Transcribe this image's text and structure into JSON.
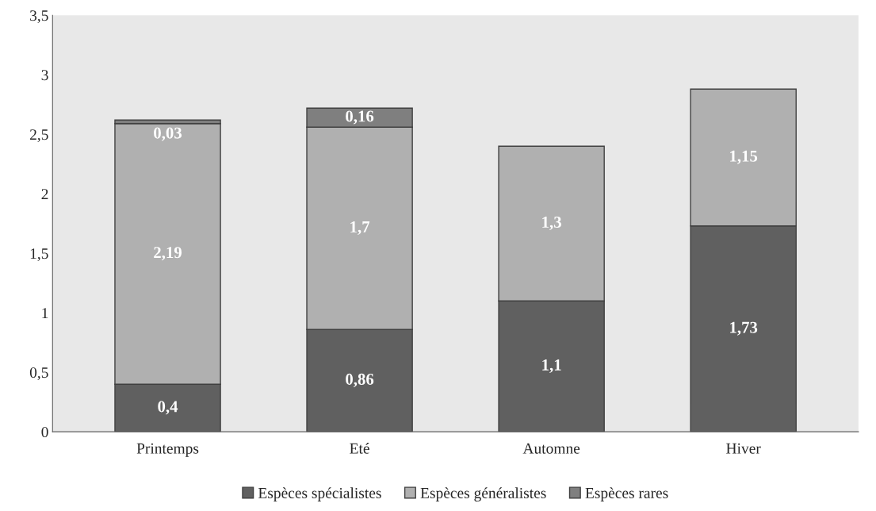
{
  "chart_data": {
    "type": "bar",
    "stacked": true,
    "categories": [
      "Printemps",
      "Eté",
      "Automne",
      "Hiver"
    ],
    "series": [
      {
        "name": "Espèces spécialistes",
        "color": "#606060",
        "values": [
          0.4,
          0.86,
          1.1,
          1.73
        ],
        "value_labels": [
          "0,4",
          "0,86",
          "1,1",
          "1,73"
        ]
      },
      {
        "name": "Espèces généralistes",
        "color": "#b0b0b0",
        "values": [
          2.19,
          1.7,
          1.3,
          1.15
        ],
        "value_labels": [
          "2,19",
          "1,7",
          "1,3",
          "1,15"
        ]
      },
      {
        "name": "Espèces rares",
        "color": "#7f7f7f",
        "values": [
          0.03,
          0.16,
          null,
          null
        ],
        "value_labels": [
          "0,03",
          "0,16",
          null,
          null
        ]
      }
    ],
    "ylim": [
      0,
      3.5
    ],
    "yticks": [
      0,
      {
        "value": 0.5,
        "label": "0,5"
      },
      1,
      {
        "value": 1.5,
        "label": "1,5"
      },
      2,
      {
        "value": 2.5,
        "label": "2,5"
      },
      3,
      {
        "value": 3.5,
        "label": "3,5"
      }
    ],
    "grid": false,
    "legend": "bottom"
  }
}
